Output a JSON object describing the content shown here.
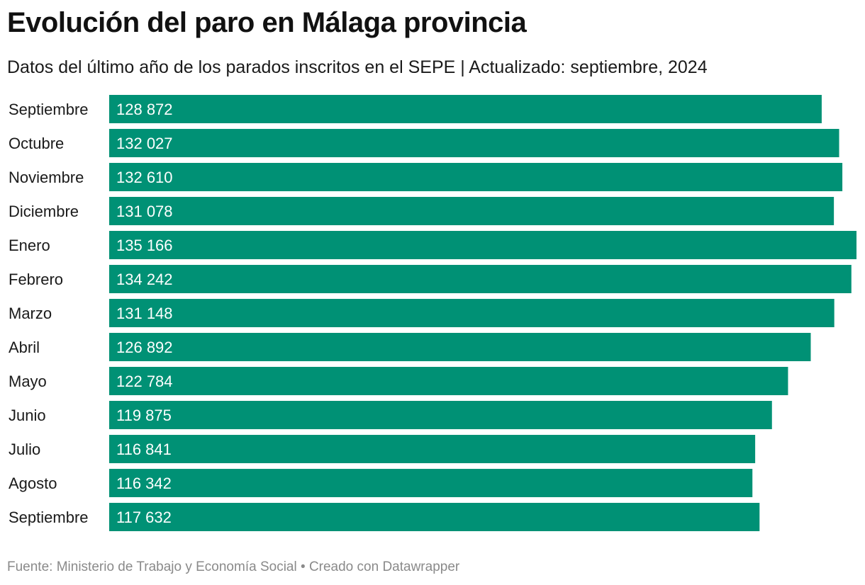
{
  "title": "Evolución del paro en Málaga provincia",
  "subtitle": "Datos del último año de los parados inscritos en el SEPE | Actualizado: septiembre, 2024",
  "footer": {
    "source": "Fuente: Ministerio de Trabajo y Economía Social",
    "separator": "•",
    "credit": "Creado con Datawrapper"
  },
  "colors": {
    "bar": "#009175",
    "value_text": "#ffffff",
    "label_text": "#1a1a1a"
  },
  "chart_data": {
    "type": "bar",
    "orientation": "horizontal",
    "title": "Evolución del paro en Málaga provincia",
    "xlabel": "",
    "ylabel": "",
    "xlim": [
      0,
      135166
    ],
    "categories": [
      "Septiembre",
      "Octubre",
      "Noviembre",
      "Diciembre",
      "Enero",
      "Febrero",
      "Marzo",
      "Abril",
      "Mayo",
      "Junio",
      "Julio",
      "Agosto",
      "Septiembre"
    ],
    "values": [
      128872,
      132027,
      132610,
      131078,
      135166,
      134242,
      131148,
      126892,
      122784,
      119875,
      116841,
      116342,
      117632
    ],
    "value_labels": [
      "128 872",
      "132 027",
      "132 610",
      "131 078",
      "135 166",
      "134 242",
      "131 148",
      "126 892",
      "122 784",
      "119 875",
      "116 841",
      "116 342",
      "117 632"
    ]
  }
}
